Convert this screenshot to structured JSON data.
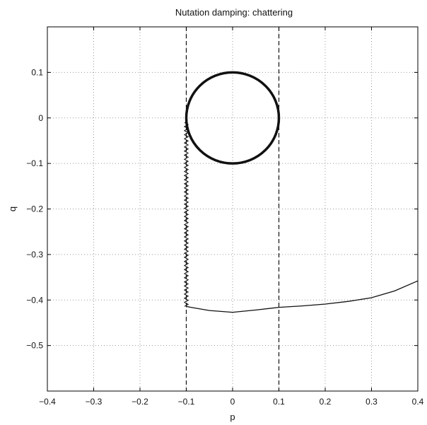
{
  "chart_data": {
    "type": "line",
    "title": "Nutation damping: chattering",
    "xlabel": "p",
    "ylabel": "q",
    "xlim": [
      -0.4,
      0.4
    ],
    "ylim": [
      -0.6,
      0.2
    ],
    "x_ticks": [
      -0.4,
      -0.3,
      -0.2,
      -0.1,
      0,
      0.1,
      0.2,
      0.3,
      0.4
    ],
    "x_tick_labels": [
      "-0.4",
      "-0.3",
      "-0.2",
      "-0.1",
      "0",
      "0.1",
      "0.2",
      "0.3",
      "0.4"
    ],
    "y_ticks": [
      0.1,
      0,
      -0.1,
      -0.2,
      -0.3,
      -0.4,
      -0.5
    ],
    "y_tick_labels": [
      "0.1",
      "0",
      "-0.1",
      "-0.2",
      "-0.3",
      "-0.4",
      "-0.5"
    ],
    "grid": true,
    "grid_style": "dotted",
    "reference_lines": [
      {
        "orientation": "vertical",
        "x": -0.1,
        "style": "dashed"
      },
      {
        "orientation": "vertical",
        "x": 0.1,
        "style": "dashed"
      }
    ],
    "circle": {
      "center": [
        0,
        0
      ],
      "radius": 0.1
    },
    "trajectory": {
      "tail": [
        [
          0.4,
          -0.358
        ],
        [
          0.35,
          -0.38
        ],
        [
          0.3,
          -0.395
        ],
        [
          0.25,
          -0.403
        ],
        [
          0.2,
          -0.409
        ],
        [
          0.15,
          -0.413
        ],
        [
          0.1,
          -0.416
        ],
        [
          0.05,
          -0.422
        ],
        [
          0.0,
          -0.427
        ],
        [
          -0.05,
          -0.423
        ],
        [
          -0.09,
          -0.416
        ],
        [
          -0.1,
          -0.414
        ]
      ],
      "chatter": {
        "x_center": -0.1,
        "amplitude": 0.004,
        "q_from": -0.414,
        "q_to": -0.01,
        "half_cycles": 90
      }
    },
    "colors": {
      "line": "#111111",
      "grid": "#9a9a9a",
      "axes": "#000000"
    }
  }
}
